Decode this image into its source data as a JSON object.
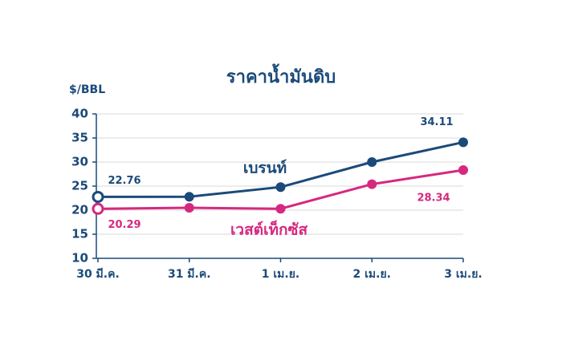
{
  "chart_data": {
    "type": "line",
    "title": "ราคาน้ำมันดิบ",
    "y_label": "$/BBL",
    "categories": [
      "30 มี.ค.",
      "31 มี.ค.",
      "1 เม.ย.",
      "2 เม.ย.",
      "3 เม.ย."
    ],
    "series": [
      {
        "name": "เบรนท์",
        "color": "#1b4a7a",
        "values": [
          22.76,
          22.8,
          24.8,
          30.0,
          34.11
        ],
        "value_labels": [
          "22.76",
          null,
          null,
          null,
          "34.11"
        ]
      },
      {
        "name": "เวสต์เท็กซัส",
        "color": "#d6287f",
        "values": [
          20.29,
          20.5,
          20.3,
          25.4,
          28.34
        ],
        "value_labels": [
          "20.29",
          null,
          null,
          null,
          "28.34"
        ]
      }
    ],
    "ylim": [
      10,
      40
    ],
    "yticks": [
      10,
      15,
      20,
      25,
      30,
      35,
      40
    ],
    "grid": true
  }
}
